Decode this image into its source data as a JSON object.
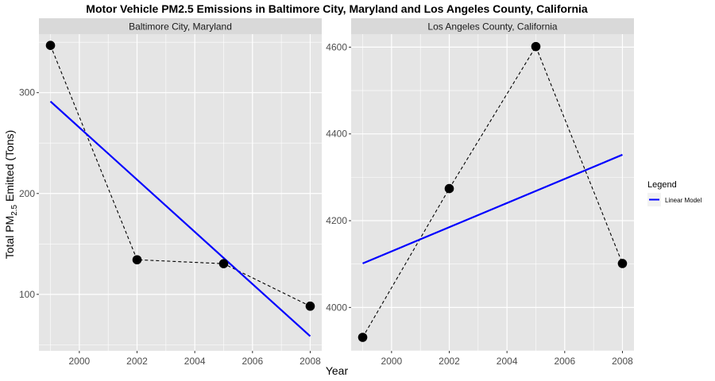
{
  "chart_data": {
    "type": "line",
    "title": "Motor Vehicle PM2.5 Emissions in Baltimore City, Maryland and Los Angeles County, California",
    "xlabel": "Year",
    "ylabel_main": "Total PM",
    "ylabel_sub": "2.5",
    "ylabel_rest": " Emitted (Tons)",
    "legend": {
      "title": "Legend",
      "position": "right",
      "entries": [
        {
          "label": "Linear Model",
          "color": "#0000ff"
        }
      ]
    },
    "grid": true,
    "colors": {
      "panel_bg": "#e5e5e5",
      "strip_bg": "#d9d9d9",
      "grid": "#ffffff",
      "points": "#000000",
      "fit": "#0000ff"
    },
    "panels": [
      {
        "name": "Baltimore City, Maryland",
        "x": [
          1999,
          2002,
          2005,
          2008
        ],
        "y": [
          346.82,
          134.31,
          130.43,
          88.28
        ],
        "fit": {
          "x": [
            1999,
            2008
          ],
          "y": [
            291.3,
            58.5
          ]
        },
        "xlim": [
          1998.6,
          2008.4
        ],
        "ylim": [
          44,
          358
        ],
        "xticks": [
          2000,
          2002,
          2004,
          2006,
          2008
        ],
        "yticks": [
          100,
          200,
          300
        ]
      },
      {
        "name": "Los Angeles County, California",
        "x": [
          1999,
          2002,
          2005,
          2008
        ],
        "y": [
          3931.12,
          4274.03,
          4601.41,
          4101.32
        ],
        "fit": {
          "x": [
            1999,
            2008
          ],
          "y": [
            4101.5,
            4352.0
          ]
        },
        "xlim": [
          1998.6,
          2008.4
        ],
        "ylim": [
          3900,
          4630
        ],
        "xticks": [
          2000,
          2002,
          2004,
          2006,
          2008
        ],
        "yticks": [
          4000,
          4200,
          4400,
          4600
        ]
      }
    ]
  }
}
